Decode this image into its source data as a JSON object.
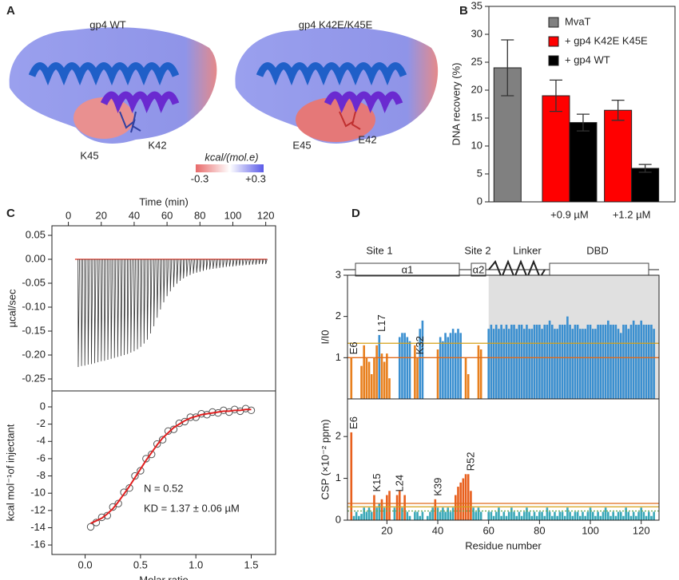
{
  "panel_a": {
    "label": "A",
    "structures": [
      {
        "title": "gp4 WT",
        "residues": [
          "K45",
          "K42"
        ]
      },
      {
        "title": "gp4 K42E/K45E",
        "residues": [
          "E45",
          "E42"
        ]
      }
    ],
    "colorbar": {
      "title": "kcal/(mol.e)",
      "min_label": "-0.3",
      "max_label": "+0.3"
    }
  },
  "domains": {
    "labels": [
      "Site 1",
      "Site 2",
      "Linker",
      "DBD"
    ],
    "helices": [
      "α1",
      "α2"
    ]
  },
  "chart_data": [
    {
      "type": "bar",
      "label": "B",
      "ylabel": "DNA recovery (%)",
      "categories": [
        null,
        "+0.9 µM",
        "+1.2 µM"
      ],
      "series": [
        {
          "name": "MvaT",
          "color": "#808080",
          "values": [
            24,
            null,
            null
          ],
          "errors": [
            5,
            null,
            null
          ]
        },
        {
          "name": "+ gp4 K42E K45E",
          "color": "#ff0000",
          "values": [
            null,
            19,
            16.4
          ],
          "errors": [
            null,
            2.8,
            1.8
          ]
        },
        {
          "name": "+ gp4 WT",
          "color": "#000000",
          "values": [
            null,
            14.2,
            6
          ],
          "errors": [
            null,
            1.5,
            0.7
          ]
        }
      ],
      "ylim": [
        0,
        35
      ],
      "yticks": [
        0,
        5,
        10,
        15,
        20,
        25,
        30,
        35
      ],
      "legend": "upper right"
    },
    {
      "type": "spike",
      "label": "C",
      "xlabel": "Time (min)",
      "xaxis": "top",
      "ylabel": "µcal/sec",
      "color": "#333333",
      "baseline_color": "#e03020",
      "x": [
        6,
        8,
        10,
        12,
        14,
        16,
        18,
        20,
        22,
        24,
        26,
        28,
        30,
        32,
        34,
        36,
        38,
        40,
        42,
        44,
        46,
        48,
        50,
        52,
        54,
        56,
        58,
        60,
        62,
        64,
        66,
        68,
        70,
        72,
        74,
        76,
        78,
        80,
        82,
        84,
        86,
        88,
        90,
        92,
        94,
        96,
        98,
        100,
        102,
        104,
        106,
        108,
        110,
        112,
        114,
        116,
        118,
        120
      ],
      "values": [
        -0.225,
        -0.223,
        -0.222,
        -0.22,
        -0.219,
        -0.217,
        -0.215,
        -0.213,
        -0.212,
        -0.21,
        -0.208,
        -0.206,
        -0.204,
        -0.202,
        -0.2,
        -0.198,
        -0.195,
        -0.192,
        -0.188,
        -0.183,
        -0.176,
        -0.168,
        -0.155,
        -0.14,
        -0.122,
        -0.105,
        -0.09,
        -0.077,
        -0.067,
        -0.058,
        -0.051,
        -0.045,
        -0.04,
        -0.036,
        -0.033,
        -0.03,
        -0.028,
        -0.026,
        -0.024,
        -0.022,
        -0.021,
        -0.02,
        -0.019,
        -0.018,
        -0.017,
        -0.016,
        -0.015,
        -0.015,
        -0.014,
        -0.013,
        -0.013,
        -0.012,
        -0.012,
        -0.011,
        -0.011,
        -0.01,
        -0.01,
        -0.01
      ],
      "xlim": [
        -10,
        126
      ],
      "xticks": [
        0,
        20,
        40,
        60,
        80,
        100,
        120
      ],
      "ylim": [
        -0.275,
        0.07
      ],
      "yticks": [
        0.05,
        {
          "value": 0,
          "label": "0.00"
        },
        -0.05,
        {
          "value": -0.1,
          "label": "-0.10"
        },
        -0.15,
        {
          "value": -0.2,
          "label": "-0.20"
        },
        -0.25
      ]
    },
    {
      "type": "scatter",
      "xlabel": "Molar ratio",
      "ylabel": "kcal mol⁻¹of injectant",
      "color": "#555555",
      "fit_color": "#e02020",
      "x": [
        0.05,
        0.1,
        0.15,
        0.2,
        0.25,
        0.3,
        0.35,
        0.4,
        0.45,
        0.5,
        0.55,
        0.6,
        0.65,
        0.7,
        0.75,
        0.8,
        0.85,
        0.9,
        0.95,
        1.0,
        1.05,
        1.1,
        1.15,
        1.2,
        1.25,
        1.3,
        1.35,
        1.4,
        1.45,
        1.5
      ],
      "values": [
        -13.9,
        -13.4,
        -12.8,
        -12.6,
        -11.6,
        -11.2,
        -9.9,
        -9.4,
        -8.0,
        -7.4,
        -6.0,
        -5.5,
        -4.3,
        -3.8,
        -2.8,
        -2.6,
        -1.9,
        -1.7,
        -1.2,
        -1.2,
        -0.8,
        -0.9,
        -0.6,
        -0.7,
        -0.4,
        -0.6,
        -0.3,
        -0.5,
        -0.2,
        -0.4
      ],
      "fit": [
        -13.5,
        -13.2,
        -12.9,
        -12.4,
        -11.8,
        -11.0,
        -10.1,
        -9.2,
        -8.2,
        -7.2,
        -6.2,
        -5.3,
        -4.4,
        -3.6,
        -3.0,
        -2.4,
        -2.0,
        -1.6,
        -1.3,
        -1.1,
        -0.9,
        -0.8,
        -0.7,
        -0.6,
        -0.5,
        -0.5,
        -0.4,
        -0.4,
        -0.3,
        -0.3
      ],
      "annotations": [
        "N = 0.52",
        "KD = 1.37 ± 0.06 µM"
      ],
      "xlim": [
        -0.3,
        1.72
      ],
      "xticks": [
        {
          "value": 0,
          "label": "0.0"
        },
        0.5,
        {
          "value": 1,
          "label": "1.0"
        },
        1.5
      ],
      "ylim": [
        -17.1,
        1.85
      ],
      "yticks": [
        0,
        -2,
        -4,
        -6,
        -8,
        -10,
        -12,
        -14,
        -16
      ]
    },
    {
      "type": "bar",
      "label": "D",
      "ylabel": "I/I0",
      "shade_from": 60,
      "highlight": "below",
      "colors": {
        "highlight": "#e8801e",
        "other": "#3a8fd0"
      },
      "ref_lines": [
        {
          "value": 1.35,
          "color": "#d4a017"
        },
        {
          "value": 1.0,
          "color": "#e06a1a"
        }
      ],
      "annotations": [
        {
          "text": "E6",
          "x": 6
        },
        {
          "text": "L17",
          "x": 17
        },
        {
          "text": "K32",
          "x": 32
        }
      ],
      "x": [
        5,
        6,
        7,
        8,
        9,
        10,
        11,
        12,
        13,
        14,
        15,
        16,
        17,
        18,
        19,
        20,
        21,
        22,
        23,
        24,
        25,
        26,
        27,
        28,
        29,
        30,
        31,
        32,
        33,
        34,
        35,
        36,
        37,
        38,
        39,
        40,
        41,
        42,
        43,
        44,
        45,
        46,
        47,
        48,
        49,
        50,
        51,
        52,
        53,
        54,
        55,
        56,
        57,
        58,
        59,
        60,
        61,
        62,
        63,
        64,
        65,
        66,
        67,
        68,
        69,
        70,
        71,
        72,
        73,
        74,
        75,
        76,
        77,
        78,
        79,
        80,
        81,
        82,
        83,
        84,
        85,
        86,
        87,
        88,
        89,
        90,
        91,
        92,
        93,
        94,
        95,
        96,
        97,
        98,
        99,
        100,
        101,
        102,
        103,
        104,
        105,
        106,
        107,
        108,
        109,
        110,
        111,
        112,
        113,
        114,
        115,
        116,
        117,
        118,
        119,
        120,
        121,
        122,
        123,
        124,
        125
      ],
      "values": [
        null,
        1.0,
        null,
        null,
        null,
        0.8,
        1.3,
        1.0,
        0.9,
        0.6,
        1.0,
        1.3,
        1.55,
        1.1,
        0.9,
        1.1,
        0.5,
        null,
        null,
        null,
        1.5,
        1.6,
        1.6,
        1.5,
        1.4,
        null,
        1.3,
        1.0,
        1.7,
        1.9,
        null,
        null,
        null,
        null,
        null,
        1.2,
        1.5,
        1.4,
        1.6,
        1.5,
        1.6,
        1.7,
        1.6,
        1.7,
        1.6,
        null,
        1.0,
        0.6,
        null,
        null,
        null,
        1.3,
        1.2,
        null,
        null,
        1.7,
        1.8,
        1.7,
        1.8,
        1.7,
        1.8,
        1.7,
        1.8,
        1.7,
        1.8,
        1.8,
        1.7,
        1.8,
        1.8,
        1.7,
        1.8,
        1.7,
        1.7,
        1.8,
        1.8,
        1.8,
        1.7,
        1.8,
        1.8,
        1.9,
        1.8,
        1.7,
        1.7,
        1.8,
        1.8,
        1.8,
        2.0,
        1.8,
        1.7,
        1.8,
        1.8,
        1.7,
        1.7,
        1.7,
        1.8,
        1.8,
        1.7,
        1.7,
        1.8,
        1.8,
        1.8,
        1.8,
        1.9,
        1.8,
        1.8,
        1.8,
        1.7,
        1.6,
        1.8,
        1.8,
        1.7,
        1.8,
        1.9,
        1.8,
        1.8,
        1.9,
        1.8,
        1.8,
        1.8,
        1.8,
        1.7
      ],
      "xlim": [
        4.5,
        127
      ],
      "ylim": [
        0,
        3
      ],
      "yticks": [
        1,
        2,
        3
      ]
    },
    {
      "type": "bar",
      "xlabel": "Residue number",
      "ylabel": "CSP (×10⁻² ppm)",
      "highlight": "above",
      "colors": {
        "highlight": "#e8601e",
        "other": "#3aa8b8"
      },
      "ref_lines": [
        {
          "value": 0.4,
          "color": "#e06a1a"
        },
        {
          "value": 0.32,
          "color": "#d4a017"
        },
        {
          "value": 0.22,
          "color": "#6aa84f",
          "style": "dotted"
        }
      ],
      "annotations": [
        {
          "text": "E6",
          "x": 6
        },
        {
          "text": "K15",
          "x": 15
        },
        {
          "text": "L24",
          "x": 24
        },
        {
          "text": "K39",
          "x": 39
        },
        {
          "text": "R52",
          "x": 52
        }
      ],
      "x": [
        5,
        6,
        7,
        8,
        9,
        10,
        11,
        12,
        13,
        14,
        15,
        16,
        17,
        18,
        19,
        20,
        21,
        22,
        23,
        24,
        25,
        26,
        27,
        28,
        29,
        30,
        31,
        32,
        33,
        34,
        35,
        36,
        37,
        38,
        39,
        40,
        41,
        42,
        43,
        44,
        45,
        46,
        47,
        48,
        49,
        50,
        51,
        52,
        53,
        54,
        55,
        56,
        57,
        58,
        59,
        60,
        61,
        62,
        63,
        64,
        65,
        66,
        67,
        68,
        69,
        70,
        71,
        72,
        73,
        74,
        75,
        76,
        77,
        78,
        79,
        80,
        81,
        82,
        83,
        84,
        85,
        86,
        87,
        88,
        89,
        90,
        91,
        92,
        93,
        94,
        95,
        96,
        97,
        98,
        99,
        100,
        101,
        102,
        103,
        104,
        105,
        106,
        107,
        108,
        109,
        110,
        111,
        112,
        113,
        114,
        115,
        116,
        117,
        118,
        119,
        120,
        121,
        122,
        123,
        124,
        125
      ],
      "values": [
        null,
        2.1,
        0.1,
        0.2,
        0.1,
        0.15,
        0.3,
        0.2,
        0.3,
        0.2,
        0.6,
        0.3,
        0.4,
        0.5,
        0.3,
        0.6,
        0.7,
        null,
        0.3,
        0.6,
        0.7,
        0.3,
        0.6,
        0.2,
        0.1,
        null,
        0.2,
        0.2,
        0.1,
        0.2,
        null,
        0.1,
        0.2,
        0.3,
        0.5,
        0.3,
        0.2,
        0.3,
        0.2,
        0.3,
        0.2,
        0.3,
        0.6,
        0.8,
        0.9,
        1.0,
        1.1,
        1.1,
        0.7,
        0.3,
        0.2,
        0.3,
        0.2,
        null,
        null,
        0.2,
        0.2,
        0.1,
        0.2,
        0.3,
        0.1,
        0.2,
        0.1,
        0.2,
        0.3,
        0.2,
        0.1,
        0.2,
        0.1,
        0.2,
        0.3,
        0.2,
        0.1,
        0.2,
        0.1,
        0.2,
        0.2,
        0.1,
        0.3,
        0.2,
        0.1,
        0.2,
        0.1,
        0.2,
        0.2,
        0.1,
        0.3,
        0.2,
        0.1,
        0.2,
        0.2,
        0.1,
        0.2,
        0.1,
        0.2,
        0.3,
        0.2,
        0.1,
        0.2,
        0.1,
        0.2,
        0.3,
        0.2,
        0.1,
        0.2,
        0.1,
        0.2,
        0.2,
        0.1,
        0.3,
        0.2,
        0.1,
        0.2,
        0.1,
        0.2,
        0.3,
        0.2,
        0.1,
        0.2,
        0.1,
        0.2
      ],
      "xlim": [
        4.5,
        127
      ],
      "xticks": [
        20,
        40,
        60,
        80,
        100,
        120
      ],
      "ylim": [
        0,
        2.9
      ],
      "yticks": [
        0,
        1,
        2
      ]
    }
  ]
}
